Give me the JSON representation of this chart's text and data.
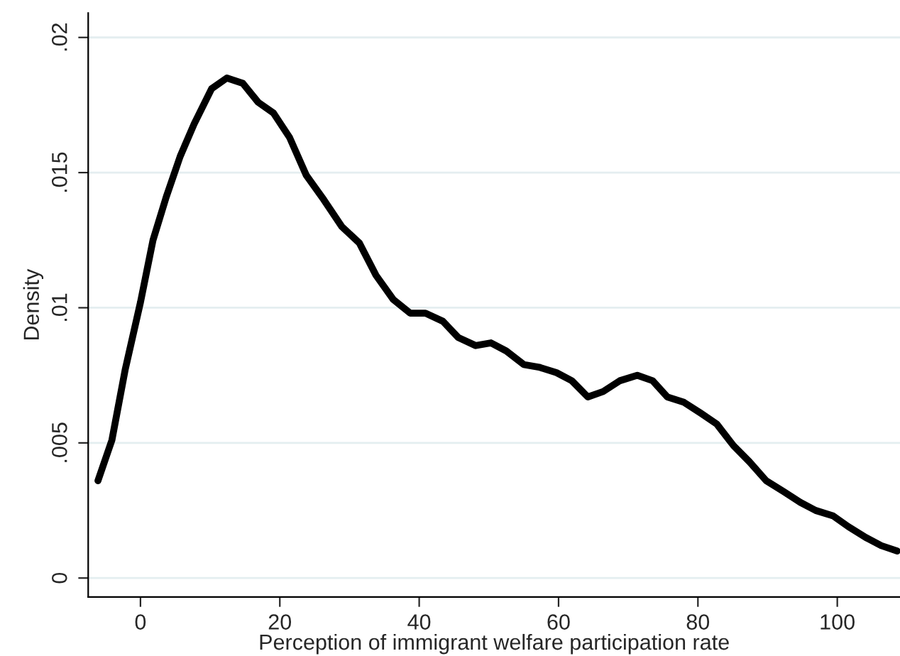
{
  "chart_data": {
    "type": "line",
    "xlabel": "Perception of immigrant welfare participation rate",
    "ylabel": "Density",
    "x": [
      -6.1,
      -4.1,
      -2.2,
      0,
      1.8,
      3.7,
      5.7,
      7.7,
      10.2,
      12.4,
      14.7,
      16.9,
      19.1,
      21.4,
      23.8,
      26.3,
      28.9,
      31.4,
      33.8,
      36.3,
      38.7,
      40.9,
      43.4,
      45.6,
      48.1,
      50.3,
      52.5,
      55.0,
      57.2,
      59.7,
      61.9,
      64.2,
      66.4,
      68.8,
      71.3,
      73.5,
      75.6,
      78.0,
      80.4,
      82.7,
      85.1,
      87.4,
      89.8,
      92.3,
      94.7,
      96.9,
      99.4,
      101.6,
      104.1,
      106.3,
      108.6
    ],
    "series": [
      {
        "color": "#000000",
        "values": [
          0.0036,
          0.0051,
          0.0077,
          0.0102,
          0.0125,
          0.0141,
          0.0156,
          0.0168,
          0.0181,
          0.0185,
          0.0183,
          0.0176,
          0.0172,
          0.0163,
          0.0149,
          0.014,
          0.013,
          0.0124,
          0.0112,
          0.0103,
          0.0098,
          0.0098,
          0.0095,
          0.0089,
          0.0086,
          0.0087,
          0.0084,
          0.0079,
          0.0078,
          0.0076,
          0.0073,
          0.0067,
          0.0069,
          0.0073,
          0.0075,
          0.0073,
          0.0067,
          0.0065,
          0.0061,
          0.0057,
          0.0049,
          0.0043,
          0.0036,
          0.0032,
          0.0028,
          0.0025,
          0.0023,
          0.0019,
          0.0015,
          0.0012,
          0.001
        ]
      }
    ],
    "xlim": [
      -7.5,
      109
    ],
    "ylim": [
      -0.0007,
      0.0209
    ],
    "xticks": [
      0,
      20,
      40,
      60,
      80,
      100
    ],
    "yticks": [
      {
        "value": 0,
        "label": "0"
      },
      {
        "value": 0.005,
        "label": ".005"
      },
      {
        "value": 0.01,
        "label": ".01"
      },
      {
        "value": 0.015,
        "label": ".015"
      },
      {
        "value": 0.02,
        "label": ".02"
      }
    ],
    "grid": "y",
    "marker": "none",
    "line_style": "solid"
  }
}
